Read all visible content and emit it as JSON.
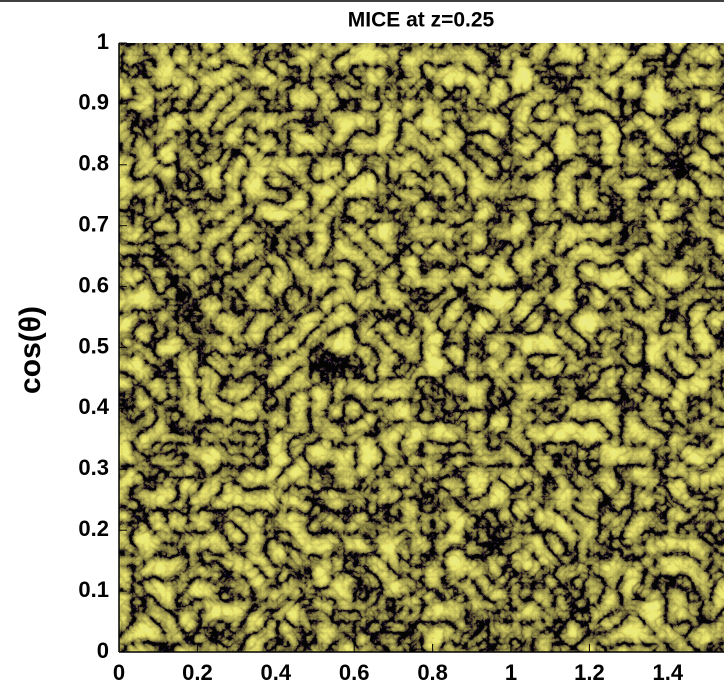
{
  "chart_data": {
    "type": "density-map",
    "title": "MICE at z=0.25",
    "y_label": "cos(θ)",
    "xlim": [
      0,
      1.54
    ],
    "xticks": [
      0,
      0.2,
      0.4,
      0.6,
      0.8,
      1,
      1.2,
      1.4
    ],
    "ylim": [
      0,
      1
    ],
    "yticks": [
      0,
      0.1,
      0.2,
      0.3,
      0.4,
      0.5,
      0.6,
      0.7,
      0.8,
      0.9,
      1
    ],
    "color": "#e8e020"
  }
}
